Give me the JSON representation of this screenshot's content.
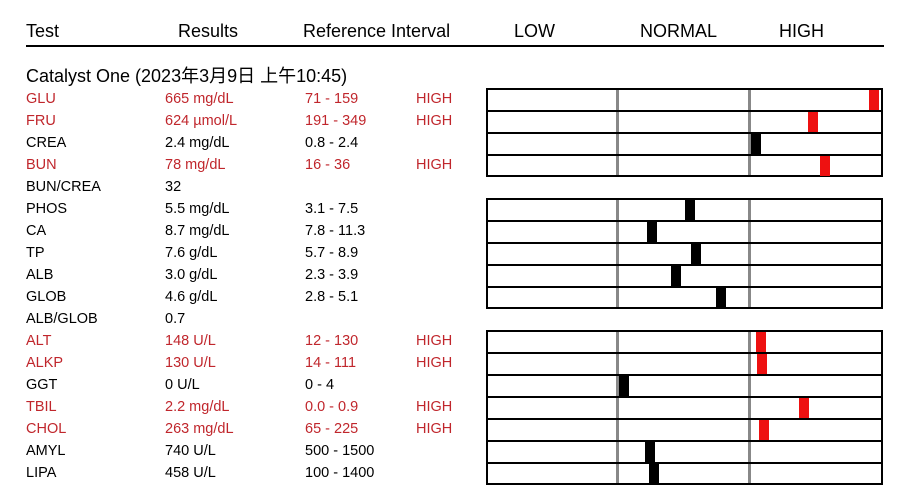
{
  "headers": {
    "test": "Test",
    "results": "Results",
    "reference": "Reference Interval",
    "low": "LOW",
    "normal": "NORMAL",
    "high": "HIGH"
  },
  "section_title": "Catalyst One (2023年3月9日 上午10:45)",
  "colors": {
    "flag_text": "#c0262c",
    "marker_high": "#ee1111",
    "marker_normal": "#000000"
  },
  "rows": [
    {
      "test": "GLU",
      "result": "665 mg/dL",
      "ref": "71 - 159",
      "flag": "HIGH",
      "low": 71,
      "high": 159,
      "value": 665
    },
    {
      "test": "FRU",
      "result": "624 µmol/L",
      "ref": "191 - 349",
      "flag": "HIGH",
      "low": 191,
      "high": 349,
      "value": 624
    },
    {
      "test": "CREA",
      "result": "2.4 mg/dL",
      "ref": "0.8 - 2.4",
      "flag": "",
      "low": 0.8,
      "high": 2.4,
      "value": 2.4
    },
    {
      "test": "BUN",
      "result": "78 mg/dL",
      "ref": "16 - 36",
      "flag": "HIGH",
      "low": 16,
      "high": 36,
      "value": 78
    },
    {
      "test": "BUN/CREA",
      "result": "32",
      "ref": "",
      "flag": ""
    },
    {
      "test": "PHOS",
      "result": "5.5 mg/dL",
      "ref": "3.1 - 7.5",
      "flag": "",
      "low": 3.1,
      "high": 7.5,
      "value": 5.5
    },
    {
      "test": "CA",
      "result": "8.7 mg/dL",
      "ref": "7.8 - 11.3",
      "flag": "",
      "low": 7.8,
      "high": 11.3,
      "value": 8.7
    },
    {
      "test": "TP",
      "result": "7.6 g/dL",
      "ref": "5.7 - 8.9",
      "flag": "",
      "low": 5.7,
      "high": 8.9,
      "value": 7.6
    },
    {
      "test": "ALB",
      "result": "3.0 g/dL",
      "ref": "2.3 - 3.9",
      "flag": "",
      "low": 2.3,
      "high": 3.9,
      "value": 3.0
    },
    {
      "test": "GLOB",
      "result": "4.6 g/dL",
      "ref": "2.8 - 5.1",
      "flag": "",
      "low": 2.8,
      "high": 5.1,
      "value": 4.6
    },
    {
      "test": "ALB/GLOB",
      "result": "0.7",
      "ref": "",
      "flag": ""
    },
    {
      "test": "ALT",
      "result": "148 U/L",
      "ref": "12 - 130",
      "flag": "HIGH",
      "low": 12,
      "high": 130,
      "value": 148
    },
    {
      "test": "ALKP",
      "result": "130 U/L",
      "ref": "14 - 111",
      "flag": "HIGH",
      "low": 14,
      "high": 111,
      "value": 130
    },
    {
      "test": "GGT",
      "result": "0 U/L",
      "ref": "0 - 4",
      "flag": "",
      "low": 0,
      "high": 4,
      "value": 0
    },
    {
      "test": "TBIL",
      "result": "2.2 mg/dL",
      "ref": "0.0 - 0.9",
      "flag": "HIGH",
      "low": 0.0,
      "high": 0.9,
      "value": 2.2
    },
    {
      "test": "CHOL",
      "result": "263 mg/dL",
      "ref": "65 - 225",
      "flag": "HIGH",
      "low": 65,
      "high": 225,
      "value": 263
    },
    {
      "test": "AMYL",
      "result": "740 U/L",
      "ref": "500 - 1500",
      "flag": "",
      "low": 500,
      "high": 1500,
      "value": 740
    },
    {
      "test": "LIPA",
      "result": "458 U/L",
      "ref": "100 - 1400",
      "flag": "",
      "low": 100,
      "high": 1400,
      "value": 458
    }
  ]
}
